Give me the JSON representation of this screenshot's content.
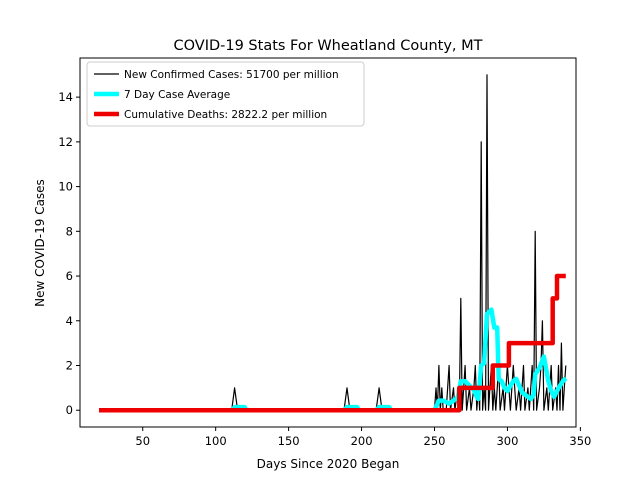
{
  "chart_data": {
    "type": "line",
    "title": "COVID-19 Stats For Wheatland County, MT",
    "xlabel": "Days Since 2020 Began",
    "ylabel": "New COVID-19 Cases",
    "xlim": [
      7,
      347
    ],
    "ylim": [
      -0.75,
      15.75
    ],
    "xticks": [
      50,
      100,
      150,
      200,
      250,
      300,
      350
    ],
    "yticks": [
      0,
      2,
      4,
      6,
      8,
      10,
      12,
      14
    ],
    "grid": false,
    "legend_position": "top-left",
    "series": [
      {
        "name": "New Confirmed Cases: 51700 per million",
        "color": "#000000",
        "style": "thin",
        "points": [
          [
            20,
            0
          ],
          [
            111,
            0
          ],
          [
            113,
            1
          ],
          [
            115,
            0
          ],
          [
            188,
            0
          ],
          [
            190,
            1
          ],
          [
            192,
            0
          ],
          [
            210,
            0
          ],
          [
            212,
            1
          ],
          [
            214,
            0
          ],
          [
            250,
            0
          ],
          [
            251,
            1
          ],
          [
            252,
            0
          ],
          [
            253,
            2
          ],
          [
            254,
            0
          ],
          [
            255,
            1
          ],
          [
            256,
            0
          ],
          [
            258,
            0
          ],
          [
            260,
            2
          ],
          [
            261,
            0
          ],
          [
            263,
            1
          ],
          [
            264,
            0
          ],
          [
            266,
            1
          ],
          [
            267,
            0
          ],
          [
            268,
            5
          ],
          [
            269,
            0
          ],
          [
            270,
            1
          ],
          [
            271,
            2
          ],
          [
            272,
            0
          ],
          [
            274,
            1
          ],
          [
            275,
            0
          ],
          [
            277,
            1
          ],
          [
            278,
            2
          ],
          [
            279,
            0
          ],
          [
            280,
            1
          ],
          [
            281,
            0
          ],
          [
            282,
            12
          ],
          [
            283,
            0
          ],
          [
            284,
            1
          ],
          [
            285,
            0
          ],
          [
            286,
            15
          ],
          [
            287,
            0
          ],
          [
            288,
            1
          ],
          [
            289,
            2
          ],
          [
            290,
            0
          ],
          [
            291,
            1
          ],
          [
            292,
            0
          ],
          [
            294,
            2
          ],
          [
            295,
            0
          ],
          [
            297,
            1
          ],
          [
            298,
            0
          ],
          [
            300,
            2
          ],
          [
            301,
            1
          ],
          [
            302,
            0
          ],
          [
            304,
            2
          ],
          [
            305,
            1
          ],
          [
            306,
            0
          ],
          [
            308,
            1
          ],
          [
            309,
            0
          ],
          [
            311,
            2
          ],
          [
            312,
            0
          ],
          [
            314,
            1
          ],
          [
            315,
            0
          ],
          [
            317,
            2
          ],
          [
            318,
            0
          ],
          [
            319,
            8
          ],
          [
            320,
            0
          ],
          [
            322,
            1
          ],
          [
            323,
            2
          ],
          [
            324,
            4
          ],
          [
            325,
            0
          ],
          [
            327,
            1
          ],
          [
            328,
            0
          ],
          [
            330,
            2
          ],
          [
            331,
            0
          ],
          [
            333,
            1
          ],
          [
            334,
            0
          ],
          [
            335,
            2
          ],
          [
            336,
            0
          ],
          [
            337,
            3
          ],
          [
            338,
            0
          ],
          [
            339,
            1
          ],
          [
            340,
            2
          ]
        ]
      },
      {
        "name": "7 Day Case Average",
        "color": "#00ffff",
        "style": "medium",
        "points": [
          [
            20,
            0
          ],
          [
            111,
            0
          ],
          [
            113,
            0.14
          ],
          [
            120,
            0.14
          ],
          [
            121,
            0
          ],
          [
            188,
            0
          ],
          [
            190,
            0.14
          ],
          [
            197,
            0.14
          ],
          [
            198,
            0
          ],
          [
            210,
            0
          ],
          [
            212,
            0.14
          ],
          [
            219,
            0.14
          ],
          [
            220,
            0
          ],
          [
            250,
            0
          ],
          [
            251,
            0.14
          ],
          [
            253,
            0.43
          ],
          [
            256,
            0.43
          ],
          [
            260,
            0.3
          ],
          [
            263,
            0.43
          ],
          [
            266,
            0.57
          ],
          [
            268,
            1.3
          ],
          [
            271,
            1.3
          ],
          [
            274,
            1.1
          ],
          [
            277,
            0.9
          ],
          [
            279,
            0.6
          ],
          [
            280,
            0.5
          ],
          [
            282,
            2
          ],
          [
            284,
            2.1
          ],
          [
            286,
            4.3
          ],
          [
            289,
            4.5
          ],
          [
            291,
            3.7
          ],
          [
            293,
            3.7
          ],
          [
            294,
            1.4
          ],
          [
            296,
            1.3
          ],
          [
            298,
            1
          ],
          [
            300,
            0.86
          ],
          [
            302,
            1.1
          ],
          [
            304,
            1.3
          ],
          [
            306,
            1.4
          ],
          [
            308,
            1.1
          ],
          [
            310,
            0.8
          ],
          [
            312,
            0.7
          ],
          [
            314,
            0.6
          ],
          [
            316,
            0.5
          ],
          [
            318,
            0.7
          ],
          [
            319,
            1.6
          ],
          [
            322,
            1.9
          ],
          [
            325,
            2.4
          ],
          [
            328,
            1.3
          ],
          [
            330,
            0.86
          ],
          [
            332,
            0.6
          ],
          [
            334,
            0.86
          ],
          [
            336,
            1.1
          ],
          [
            338,
            1.3
          ],
          [
            340,
            1.43
          ]
        ]
      },
      {
        "name": "Cumulative Deaths: 2822.2 per million",
        "color": "#ee0000",
        "style": "thick",
        "points": [
          [
            20,
            0
          ],
          [
            267,
            0
          ],
          [
            267,
            1
          ],
          [
            290,
            1
          ],
          [
            290,
            2
          ],
          [
            301,
            2
          ],
          [
            301,
            3
          ],
          [
            331,
            3
          ],
          [
            331,
            5
          ],
          [
            334,
            5
          ],
          [
            334,
            6
          ],
          [
            340,
            6
          ]
        ]
      }
    ]
  }
}
